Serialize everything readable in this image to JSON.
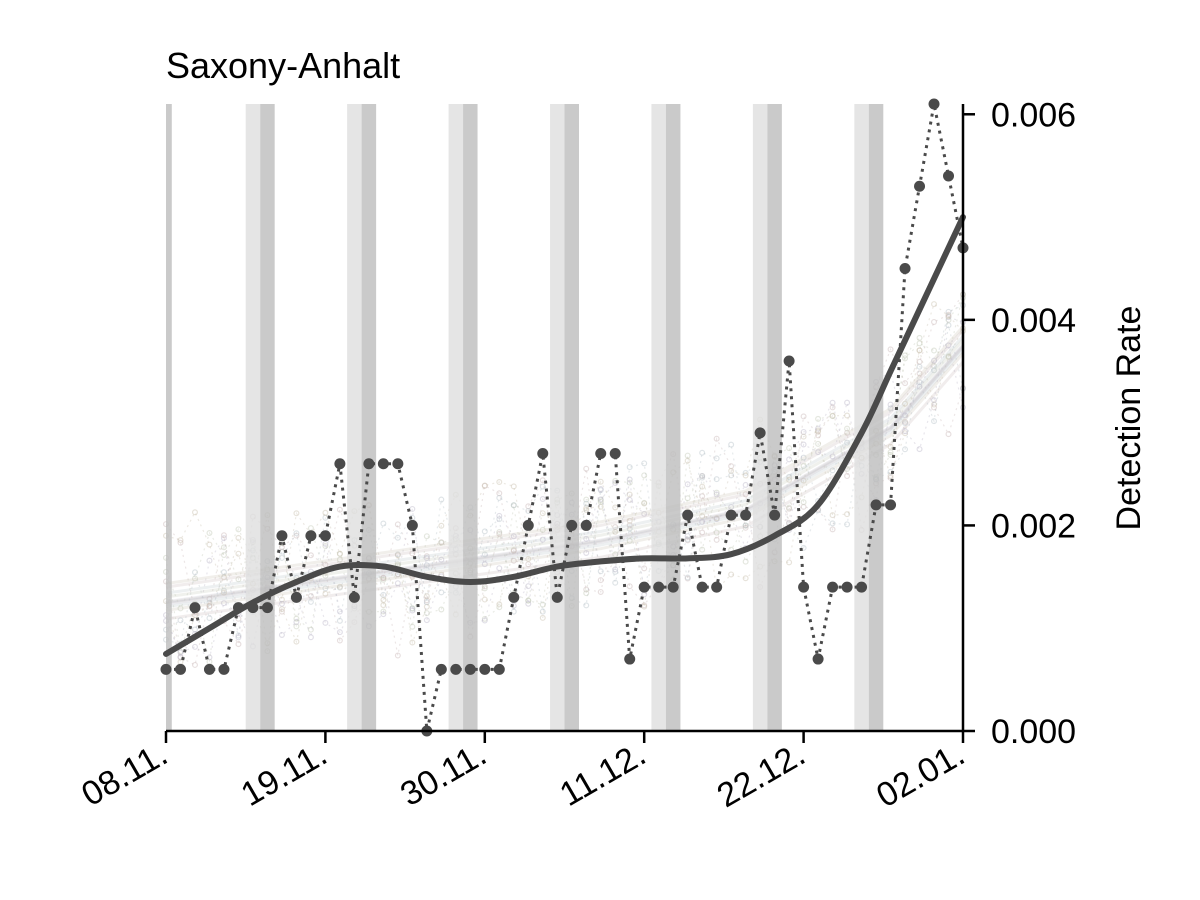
{
  "chart_data": {
    "type": "line",
    "title": "Saxony-Anhalt",
    "ylabel": "Detection Rate",
    "xlabel": "",
    "x_tick_labels": [
      "08.11.",
      "19.11.",
      "30.11.",
      "11.12.",
      "22.12.",
      "02.01."
    ],
    "y_tick_labels": [
      "0.000",
      "0.002",
      "0.004",
      "0.006"
    ],
    "y_ticks": [
      0,
      0.002,
      0.004,
      0.006
    ],
    "ylim": [
      0,
      0.0061
    ],
    "xlim_days": [
      0,
      55
    ],
    "y_axis_side": "right",
    "grid": false,
    "weekend_shading": [
      {
        "start_day": 0.0,
        "end_day": 0.4,
        "shade": "dark"
      },
      {
        "start_day": 5.5,
        "end_day": 6.5,
        "shade": "light"
      },
      {
        "start_day": 6.5,
        "end_day": 7.5,
        "shade": "dark"
      },
      {
        "start_day": 12.5,
        "end_day": 13.5,
        "shade": "light"
      },
      {
        "start_day": 13.5,
        "end_day": 14.5,
        "shade": "dark"
      },
      {
        "start_day": 19.5,
        "end_day": 20.5,
        "shade": "light"
      },
      {
        "start_day": 20.5,
        "end_day": 21.5,
        "shade": "dark"
      },
      {
        "start_day": 26.5,
        "end_day": 27.5,
        "shade": "light"
      },
      {
        "start_day": 27.5,
        "end_day": 28.5,
        "shade": "dark"
      },
      {
        "start_day": 33.5,
        "end_day": 34.5,
        "shade": "light"
      },
      {
        "start_day": 34.5,
        "end_day": 35.5,
        "shade": "dark"
      },
      {
        "start_day": 40.5,
        "end_day": 41.5,
        "shade": "light"
      },
      {
        "start_day": 41.5,
        "end_day": 42.5,
        "shade": "dark"
      },
      {
        "start_day": 47.5,
        "end_day": 48.5,
        "shade": "light"
      },
      {
        "start_day": 48.5,
        "end_day": 49.5,
        "shade": "dark"
      }
    ],
    "series": [
      {
        "style": "dotted-with-markers",
        "color": "#4a4a4a",
        "x": [
          0,
          1,
          2,
          3,
          4,
          5,
          6,
          7,
          8,
          9,
          10,
          11,
          12,
          13,
          14,
          15,
          16,
          17,
          18,
          19,
          20,
          21,
          22,
          23,
          24,
          25,
          26,
          27,
          28,
          29,
          30,
          31,
          32,
          33,
          34,
          35,
          36,
          37,
          38,
          39,
          40,
          41,
          42,
          43,
          44,
          45,
          46,
          47,
          48,
          49,
          50,
          51,
          52,
          53,
          54,
          55
        ],
        "y": [
          0.0006,
          0.0006,
          0.0012,
          0.0006,
          0.0006,
          0.0012,
          0.0012,
          0.0012,
          0.0019,
          0.0013,
          0.0019,
          0.0019,
          0.0026,
          0.0013,
          0.0026,
          0.0026,
          0.0026,
          0.002,
          0.0,
          0.0006,
          0.0006,
          0.0006,
          0.0006,
          0.0006,
          0.0013,
          0.002,
          0.0027,
          0.0013,
          0.002,
          0.002,
          0.0027,
          0.0027,
          0.0007,
          0.0014,
          0.0014,
          0.0014,
          0.0021,
          0.0014,
          0.0014,
          0.0021,
          0.0021,
          0.0029,
          0.0021,
          0.0036,
          0.0014,
          0.0007,
          0.0014,
          0.0014,
          0.0014,
          0.0022,
          0.0022,
          0.0045,
          0.0053,
          0.0061,
          0.0054,
          0.0047
        ]
      },
      {
        "style": "smoothed-trend",
        "color": "#4a4a4a",
        "x": [
          0,
          3,
          6,
          9,
          12,
          15,
          18,
          21,
          24,
          27,
          30,
          33,
          36,
          39,
          42,
          45,
          48,
          50,
          52,
          54,
          55
        ],
        "y": [
          0.00075,
          0.001,
          0.00125,
          0.00145,
          0.0016,
          0.0016,
          0.0015,
          0.00145,
          0.0015,
          0.0016,
          0.00165,
          0.00168,
          0.00168,
          0.00172,
          0.0019,
          0.0022,
          0.0029,
          0.0035,
          0.0041,
          0.0047,
          0.005
        ]
      }
    ],
    "background_series_color": "#c9b8b8",
    "background_trend": {
      "x": [
        0,
        10,
        20,
        30,
        40,
        50,
        55
      ],
      "y": [
        0.0013,
        0.0015,
        0.0017,
        0.0019,
        0.0022,
        0.003,
        0.0038
      ]
    }
  }
}
